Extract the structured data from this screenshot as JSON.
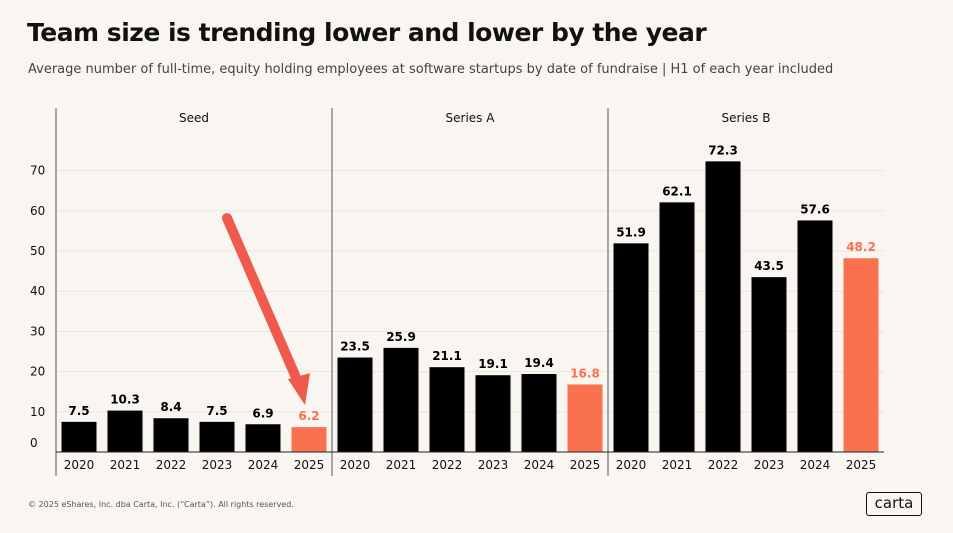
{
  "title": "Team size is trending lower and lower by the year",
  "subtitle": "Average number of full-time, equity holding employees at software startups by date of fundraise | H1 of each year included",
  "footer": {
    "copyright": "© 2025 eShares, Inc. dba Carta, Inc. (“Carta”). All rights reserved.",
    "logo_text": "carta"
  },
  "colors": {
    "bar": "#000000",
    "highlight": "#fa7150",
    "arrow": "#ef5a4c",
    "grid": "#e9e5df",
    "text": "#111111"
  },
  "chart_data": {
    "type": "bar",
    "ylim": [
      0,
      75
    ],
    "yticks": [
      0,
      10,
      20,
      30,
      40,
      50,
      60,
      70
    ],
    "grid": true,
    "highlight_category": "2025",
    "annotation": "arrow pointing to Seed 2025 bar",
    "panels": [
      {
        "name": "Seed",
        "categories": [
          "2020",
          "2021",
          "2022",
          "2023",
          "2024",
          "2025"
        ],
        "values": [
          7.5,
          10.3,
          8.4,
          7.5,
          6.9,
          6.2
        ],
        "labels": [
          "7.5",
          "10.3",
          "8.4",
          "7.5",
          "6.9",
          "6.2"
        ]
      },
      {
        "name": "Series A",
        "categories": [
          "2020",
          "2021",
          "2022",
          "2023",
          "2024",
          "2025"
        ],
        "values": [
          23.5,
          25.9,
          21.1,
          19.1,
          19.4,
          16.8
        ],
        "labels": [
          "23.5",
          "25.9",
          "21.1",
          "19.1",
          "19.4",
          "16.8"
        ]
      },
      {
        "name": "Series B",
        "categories": [
          "2020",
          "2021",
          "2022",
          "2023",
          "2024",
          "2025"
        ],
        "values": [
          51.9,
          62.1,
          72.3,
          43.5,
          57.6,
          48.2
        ],
        "labels": [
          "51.9",
          "62.1",
          "72.3",
          "43.5",
          "57.6",
          "48.2"
        ]
      }
    ]
  }
}
